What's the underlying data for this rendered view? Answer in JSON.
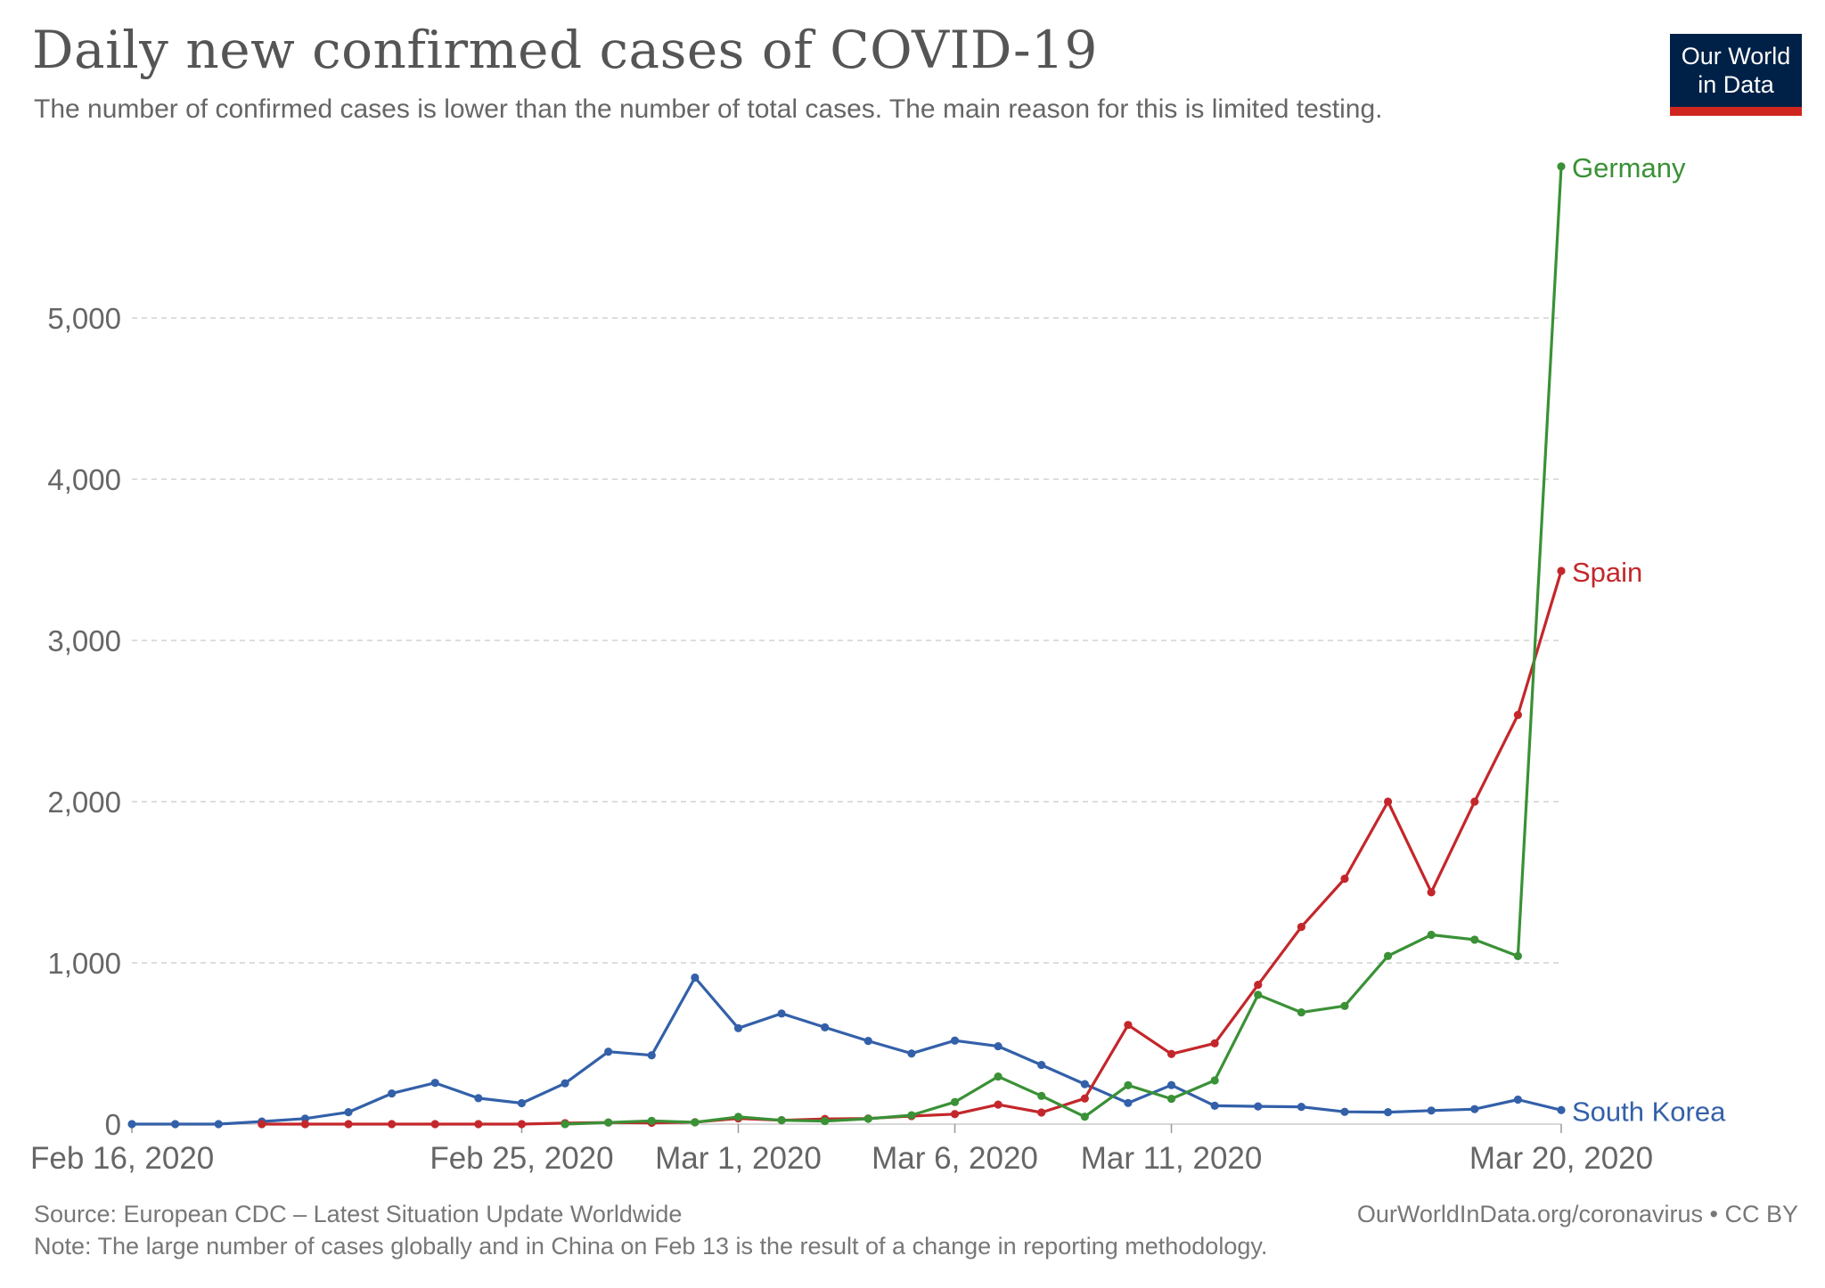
{
  "header": {
    "title": "Daily new confirmed cases of COVID-19",
    "subtitle": "The number of confirmed cases is lower than the number of total cases. The main reason for this is limited testing."
  },
  "logo": {
    "line1": "Our World",
    "line2": "in Data",
    "bg_color": "#002147",
    "accent_color": "#ce261e"
  },
  "footer": {
    "source": "Source: European CDC – Latest Situation Update Worldwide",
    "note": "Note: The large number of cases globally and in China on Feb 13 is the result of a change in reporting methodology.",
    "url": "OurWorldInData.org/coronavirus • CC BY"
  },
  "chart_data": {
    "type": "line",
    "title": "Daily new confirmed cases of COVID-19",
    "xlabel": "",
    "ylabel": "",
    "ylim": [
      0,
      6000
    ],
    "grid": true,
    "x_start": "Feb 16, 2020",
    "x_end": "Mar 20, 2020",
    "x_count": 34,
    "x_ticks": [
      {
        "index": 0,
        "label": "Feb 16, 2020"
      },
      {
        "index": 9,
        "label": "Feb 25, 2020"
      },
      {
        "index": 14,
        "label": "Mar 1, 2020"
      },
      {
        "index": 19,
        "label": "Mar 6, 2020"
      },
      {
        "index": 24,
        "label": "Mar 11, 2020"
      },
      {
        "index": 33,
        "label": "Mar 20, 2020"
      }
    ],
    "y_ticks": [
      {
        "value": 0,
        "label": "0"
      },
      {
        "value": 1000,
        "label": "1,000"
      },
      {
        "value": 2000,
        "label": "2,000"
      },
      {
        "value": 3000,
        "label": "3,000"
      },
      {
        "value": 4000,
        "label": "4,000"
      },
      {
        "value": 5000,
        "label": "5,000"
      }
    ],
    "series": [
      {
        "name": "South Korea",
        "color": "#3360a9",
        "start_index": 0,
        "values": [
          0,
          0,
          0,
          16,
          34,
          74,
          190,
          256,
          161,
          130,
          253,
          449,
          427,
          909,
          595,
          686,
          600,
          516,
          438,
          518,
          483,
          367,
          248,
          131,
          242,
          114,
          110,
          107,
          76,
          74,
          84,
          93,
          152,
          87
        ]
      },
      {
        "name": "Spain",
        "color": "#c3272b",
        "start_index": 3,
        "values": [
          0,
          0,
          0,
          0,
          0,
          0,
          0,
          6,
          10,
          8,
          12,
          35,
          24,
          32,
          35,
          50,
          62,
          121,
          72,
          159,
          615,
          435,
          501,
          864,
          1223,
          1522,
          2000,
          1438,
          2000,
          2538,
          3431
        ]
      },
      {
        "name": "Germany",
        "color": "#3a9136",
        "start_index": 10,
        "values": [
          0,
          10,
          20,
          11,
          45,
          24,
          19,
          33,
          55,
          137,
          295,
          175,
          46,
          241,
          157,
          271,
          802,
          693,
          733,
          1043,
          1174,
          1144,
          1042,
          5940
        ]
      }
    ]
  }
}
